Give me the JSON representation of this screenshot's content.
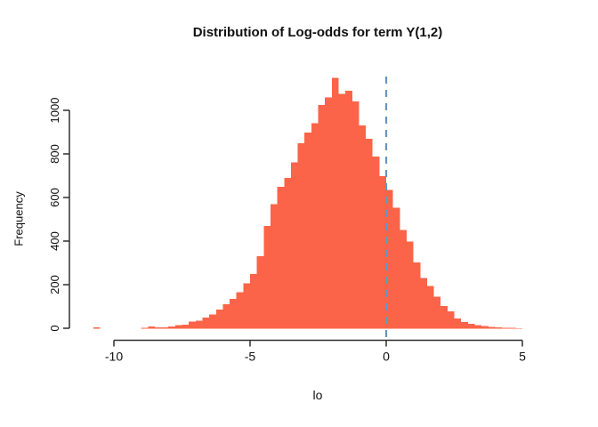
{
  "chart_data": {
    "type": "bar",
    "subtype": "histogram",
    "title": "Distribution of Log-odds for term Y(1,2)",
    "xlabel": "lo",
    "ylabel": "Frequency",
    "bin_start": -10.75,
    "bin_width": 0.25,
    "frequencies": [
      4,
      0,
      0,
      0,
      0,
      0,
      0,
      3,
      8,
      5,
      4,
      9,
      14,
      16,
      30,
      34,
      49,
      64,
      85,
      110,
      134,
      166,
      207,
      250,
      330,
      470,
      570,
      650,
      690,
      762,
      848,
      897,
      940,
      1025,
      1060,
      1150,
      1075,
      1090,
      1040,
      930,
      869,
      787,
      697,
      635,
      553,
      451,
      398,
      303,
      230,
      193,
      144,
      103,
      78,
      45,
      29,
      20,
      14,
      10,
      7,
      4,
      3,
      2,
      1
    ],
    "x_ticks": [
      -10,
      -5,
      0,
      5
    ],
    "y_ticks": [
      0,
      200,
      400,
      600,
      800,
      1000
    ],
    "xlim": [
      -10.75,
      5
    ],
    "ylim": [
      0,
      1150
    ],
    "grid": false,
    "legend": "none",
    "vline": {
      "x": 0,
      "style": "dashed",
      "color": "#6496C3"
    },
    "colors": {
      "bar": "#FB6448",
      "axis": "#2E2E2E",
      "text": "#111111",
      "background": "#FFFFFF"
    }
  }
}
